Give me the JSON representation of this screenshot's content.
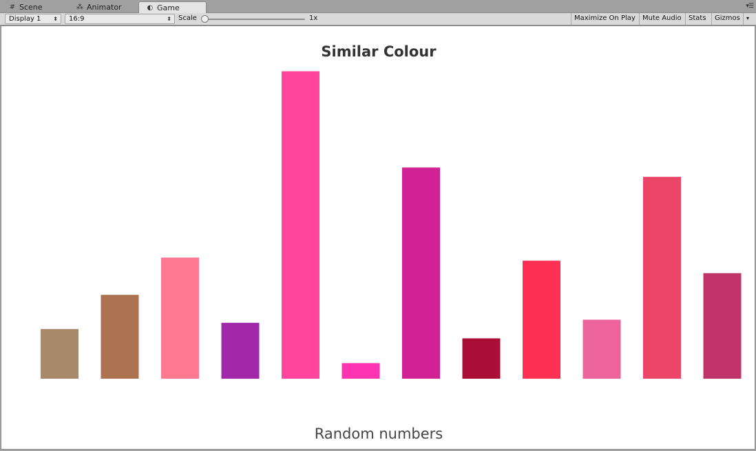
{
  "tabs": [
    {
      "label": "Scene",
      "icon": "grid-icon"
    },
    {
      "label": "Animator",
      "icon": "animator-icon"
    },
    {
      "label": "Game",
      "icon": "game-icon",
      "active": true
    }
  ],
  "toolbar": {
    "display": "Display 1",
    "aspect": "16:9",
    "scale_label": "Scale",
    "scale_value": "1x",
    "maximize_on_play": "Maximize On Play",
    "mute_audio": "Mute Audio",
    "stats": "Stats",
    "gizmos": "Gizmos"
  },
  "chart_data": {
    "type": "bar",
    "title": "Similar Colour",
    "xlabel": "Random numbers",
    "ylabel": "",
    "grid": false,
    "ylim": [
      0,
      100
    ],
    "values": [
      16,
      27,
      39,
      18,
      99,
      5,
      68,
      13,
      38,
      19,
      65,
      34
    ],
    "colors": [
      "#a8896a",
      "#ad7350",
      "#fd798f",
      "#a028a8",
      "#ff459e",
      "#fe33b1",
      "#d12295",
      "#aa0e36",
      "#fe3155",
      "#ed649c",
      "#eb4567",
      "#c1346a"
    ]
  }
}
